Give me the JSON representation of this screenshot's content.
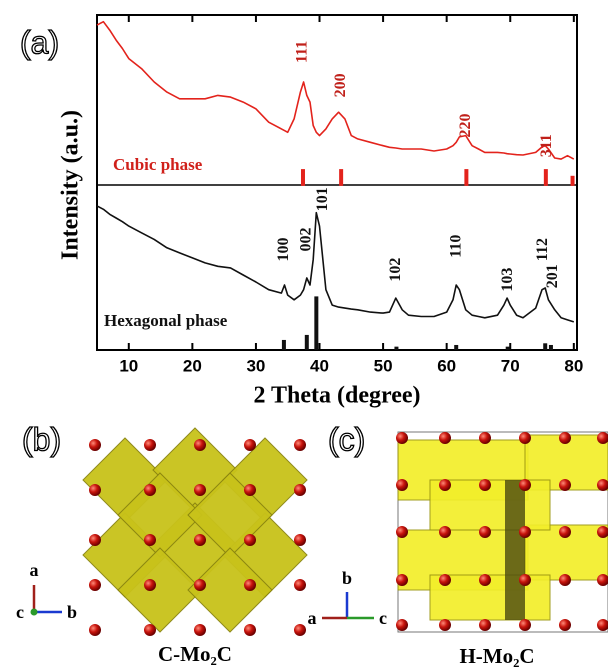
{
  "chart_data": {
    "type": "line",
    "panel_label": "(a)",
    "xlabel": "2 Theta (degree)",
    "ylabel": "Intensity (a.u.)",
    "xlim": [
      5,
      80.5
    ],
    "ylim": [
      0,
      100
    ],
    "xticks": [
      10,
      20,
      30,
      40,
      50,
      60,
      70,
      80
    ],
    "x": [
      5,
      6,
      7,
      8,
      9,
      10,
      12,
      14,
      16,
      18,
      20,
      22,
      24,
      26,
      28,
      30,
      32,
      34,
      34.5,
      35,
      36,
      37,
      37.5,
      38,
      38.5,
      39,
      39.5,
      40,
      41,
      42,
      43,
      44,
      45,
      46,
      48,
      50,
      51,
      52,
      53,
      54,
      56,
      58,
      60,
      61,
      61.5,
      62,
      63,
      64,
      65,
      66,
      68,
      69,
      69.5,
      70,
      71,
      72,
      74,
      75,
      75.5,
      76,
      77,
      78,
      79,
      80
    ],
    "series": [
      {
        "name": "Cubic phase",
        "color": "#e3231c",
        "values": [
          97,
          98,
          95.5,
          92.5,
          90,
          87,
          84,
          80,
          77,
          75,
          75,
          75,
          76,
          75.5,
          74,
          72,
          68,
          66,
          65.5,
          65,
          69,
          77,
          80,
          76,
          74,
          67,
          65,
          64,
          66,
          69,
          71,
          69,
          64,
          63,
          62,
          61,
          60.5,
          60.3,
          60,
          60,
          60,
          59.4,
          60,
          61,
          62,
          63.6,
          64,
          61,
          60,
          59,
          59,
          58.8,
          58.6,
          58.5,
          58.3,
          58.2,
          59,
          60.6,
          61,
          60,
          57.3,
          57,
          58,
          57
        ]
      },
      {
        "name": "Hexagonal phase",
        "color": "#111111",
        "values": [
          43,
          42,
          40.5,
          39.4,
          38.3,
          37,
          35,
          33,
          30.5,
          29,
          27.5,
          26,
          25,
          24.5,
          22.4,
          20.3,
          18,
          17,
          19.4,
          16.4,
          15,
          16.4,
          18,
          21.5,
          19.4,
          27,
          41,
          37,
          18,
          13.4,
          12.8,
          12.5,
          12.2,
          12,
          11.3,
          11,
          11.3,
          15.5,
          12,
          10.4,
          10,
          10,
          11.3,
          15,
          19.4,
          18,
          12,
          10.4,
          10,
          9.6,
          10.4,
          13.4,
          15.5,
          13.4,
          10.4,
          9.6,
          12.5,
          18,
          18.5,
          15,
          12,
          9.6,
          9,
          8.4
        ]
      }
    ],
    "reference_peaks": [
      {
        "series": 0,
        "baseline": 49,
        "positions": [
          37.4,
          43.4,
          63.1,
          75.6,
          79.8
        ],
        "heights": [
          5,
          5,
          5,
          5,
          3
        ]
      },
      {
        "series": 1,
        "baseline": 0,
        "positions": [
          34.4,
          38,
          39.5,
          52.1,
          61.5,
          69.6,
          75.5,
          76.4
        ],
        "heights": [
          3,
          4.5,
          16,
          1,
          1.5,
          1,
          2,
          1.5
        ]
      }
    ],
    "annotations": [
      {
        "text": "111",
        "x": 37.4,
        "y": 89,
        "color": "#c0201a"
      },
      {
        "text": "200",
        "x": 43.4,
        "y": 79,
        "color": "#c0201a"
      },
      {
        "text": "220",
        "x": 63.1,
        "y": 67,
        "color": "#c0201a"
      },
      {
        "text": "311",
        "x": 75.8,
        "y": 61,
        "color": "#c0201a"
      },
      {
        "text": "100",
        "x": 34.5,
        "y": 30,
        "color": "#111111"
      },
      {
        "text": "002",
        "x": 38,
        "y": 33,
        "color": "#111111"
      },
      {
        "text": "101",
        "x": 40.6,
        "y": 45,
        "color": "#111111"
      },
      {
        "text": "102",
        "x": 52.1,
        "y": 24,
        "color": "#111111"
      },
      {
        "text": "110",
        "x": 61.6,
        "y": 31,
        "color": "#111111"
      },
      {
        "text": "103",
        "x": 69.7,
        "y": 21,
        "color": "#111111"
      },
      {
        "text": "112",
        "x": 75.2,
        "y": 30,
        "color": "#111111"
      },
      {
        "text": "201",
        "x": 76.8,
        "y": 22,
        "color": "#111111"
      }
    ]
  },
  "panels": [
    {
      "label": "(b)",
      "caption": "C-Mo₂C",
      "axes": [
        "a",
        "c",
        "b"
      ]
    },
    {
      "label": "(c)",
      "caption": "H-Mo₂C",
      "axes": [
        "b",
        "a",
        "c"
      ]
    }
  ]
}
